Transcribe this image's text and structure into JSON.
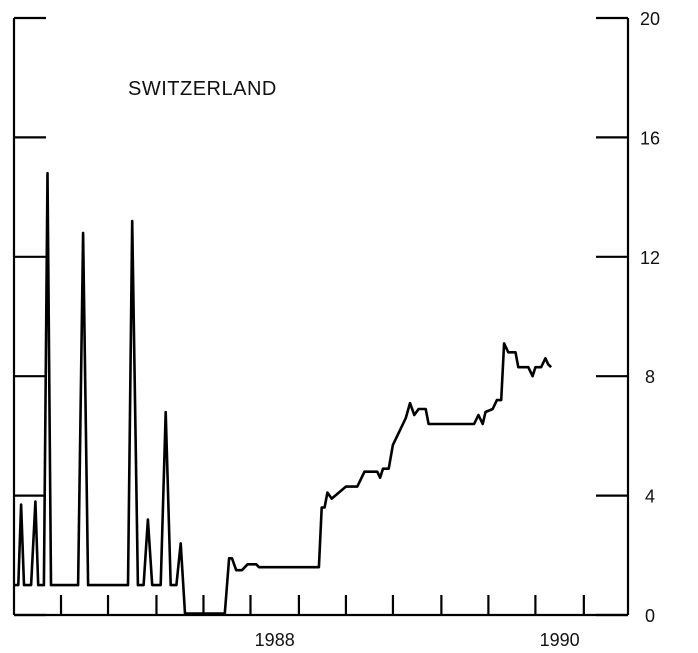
{
  "chart_data": {
    "type": "line",
    "title": "SWITZERLAND",
    "xlabel": "",
    "ylabel": "",
    "xlim": [
      1986.17,
      1990.48
    ],
    "ylim": [
      0,
      20
    ],
    "y_axis_side": "right",
    "y_ticks": [
      0,
      4,
      8,
      12,
      16,
      20
    ],
    "y_tick_labels": [
      "0",
      "4",
      "8",
      "12",
      "16",
      "20"
    ],
    "x_tick_labels": [
      {
        "value": 1988,
        "label": "1988"
      },
      {
        "value": 1990,
        "label": "1990"
      }
    ],
    "x_minor_ticks": [
      1986.5,
      1986.83,
      1987.17,
      1987.5,
      1987.83,
      1988.17,
      1988.5,
      1988.83,
      1989.17,
      1989.5,
      1989.83,
      1990.17
    ],
    "grid": false,
    "series": [
      {
        "points": [
          [
            1986.17,
            1.0
          ],
          [
            1986.2,
            1.0
          ],
          [
            1986.22,
            3.7
          ],
          [
            1986.24,
            1.0
          ],
          [
            1986.29,
            1.0
          ],
          [
            1986.32,
            3.8
          ],
          [
            1986.34,
            1.0
          ],
          [
            1986.38,
            1.0
          ],
          [
            1986.405,
            14.8
          ],
          [
            1986.43,
            1.0
          ],
          [
            1986.5,
            1.0
          ],
          [
            1986.62,
            1.0
          ],
          [
            1986.655,
            12.8
          ],
          [
            1986.69,
            1.0
          ],
          [
            1986.83,
            1.0
          ],
          [
            1986.97,
            1.0
          ],
          [
            1987.0,
            13.2
          ],
          [
            1987.04,
            1.0
          ],
          [
            1987.08,
            1.0
          ],
          [
            1987.11,
            3.2
          ],
          [
            1987.14,
            1.0
          ],
          [
            1987.2,
            1.0
          ],
          [
            1987.235,
            6.8
          ],
          [
            1987.27,
            1.0
          ],
          [
            1987.31,
            1.0
          ],
          [
            1987.34,
            2.4
          ],
          [
            1987.37,
            0.05
          ],
          [
            1987.65,
            0.05
          ],
          [
            1987.68,
            1.9
          ],
          [
            1987.7,
            1.9
          ],
          [
            1987.73,
            1.5
          ],
          [
            1987.77,
            1.5
          ],
          [
            1987.81,
            1.7
          ],
          [
            1987.87,
            1.7
          ],
          [
            1987.89,
            1.6
          ],
          [
            1988.0,
            1.6
          ],
          [
            1988.1,
            1.6
          ],
          [
            1988.2,
            1.6
          ],
          [
            1988.31,
            1.6
          ],
          [
            1988.33,
            3.6
          ],
          [
            1988.35,
            3.6
          ],
          [
            1988.37,
            4.1
          ],
          [
            1988.4,
            3.9
          ],
          [
            1988.45,
            4.1
          ],
          [
            1988.5,
            4.3
          ],
          [
            1988.58,
            4.3
          ],
          [
            1988.63,
            4.8
          ],
          [
            1988.72,
            4.8
          ],
          [
            1988.74,
            4.6
          ],
          [
            1988.76,
            4.9
          ],
          [
            1988.8,
            4.9
          ],
          [
            1988.83,
            5.7
          ],
          [
            1988.88,
            6.2
          ],
          [
            1988.92,
            6.6
          ],
          [
            1988.95,
            7.1
          ],
          [
            1988.98,
            6.7
          ],
          [
            1989.01,
            6.9
          ],
          [
            1989.06,
            6.9
          ],
          [
            1989.08,
            6.4
          ],
          [
            1989.15,
            6.4
          ],
          [
            1989.3,
            6.4
          ],
          [
            1989.4,
            6.4
          ],
          [
            1989.43,
            6.7
          ],
          [
            1989.46,
            6.4
          ],
          [
            1989.48,
            6.8
          ],
          [
            1989.53,
            6.9
          ],
          [
            1989.56,
            7.2
          ],
          [
            1989.59,
            7.2
          ],
          [
            1989.61,
            9.1
          ],
          [
            1989.64,
            8.8
          ],
          [
            1989.69,
            8.8
          ],
          [
            1989.71,
            8.3
          ],
          [
            1989.78,
            8.3
          ],
          [
            1989.81,
            8.0
          ],
          [
            1989.83,
            8.3
          ],
          [
            1989.87,
            8.3
          ],
          [
            1989.9,
            8.6
          ],
          [
            1989.92,
            8.4
          ],
          [
            1989.94,
            8.3
          ]
        ]
      }
    ]
  }
}
